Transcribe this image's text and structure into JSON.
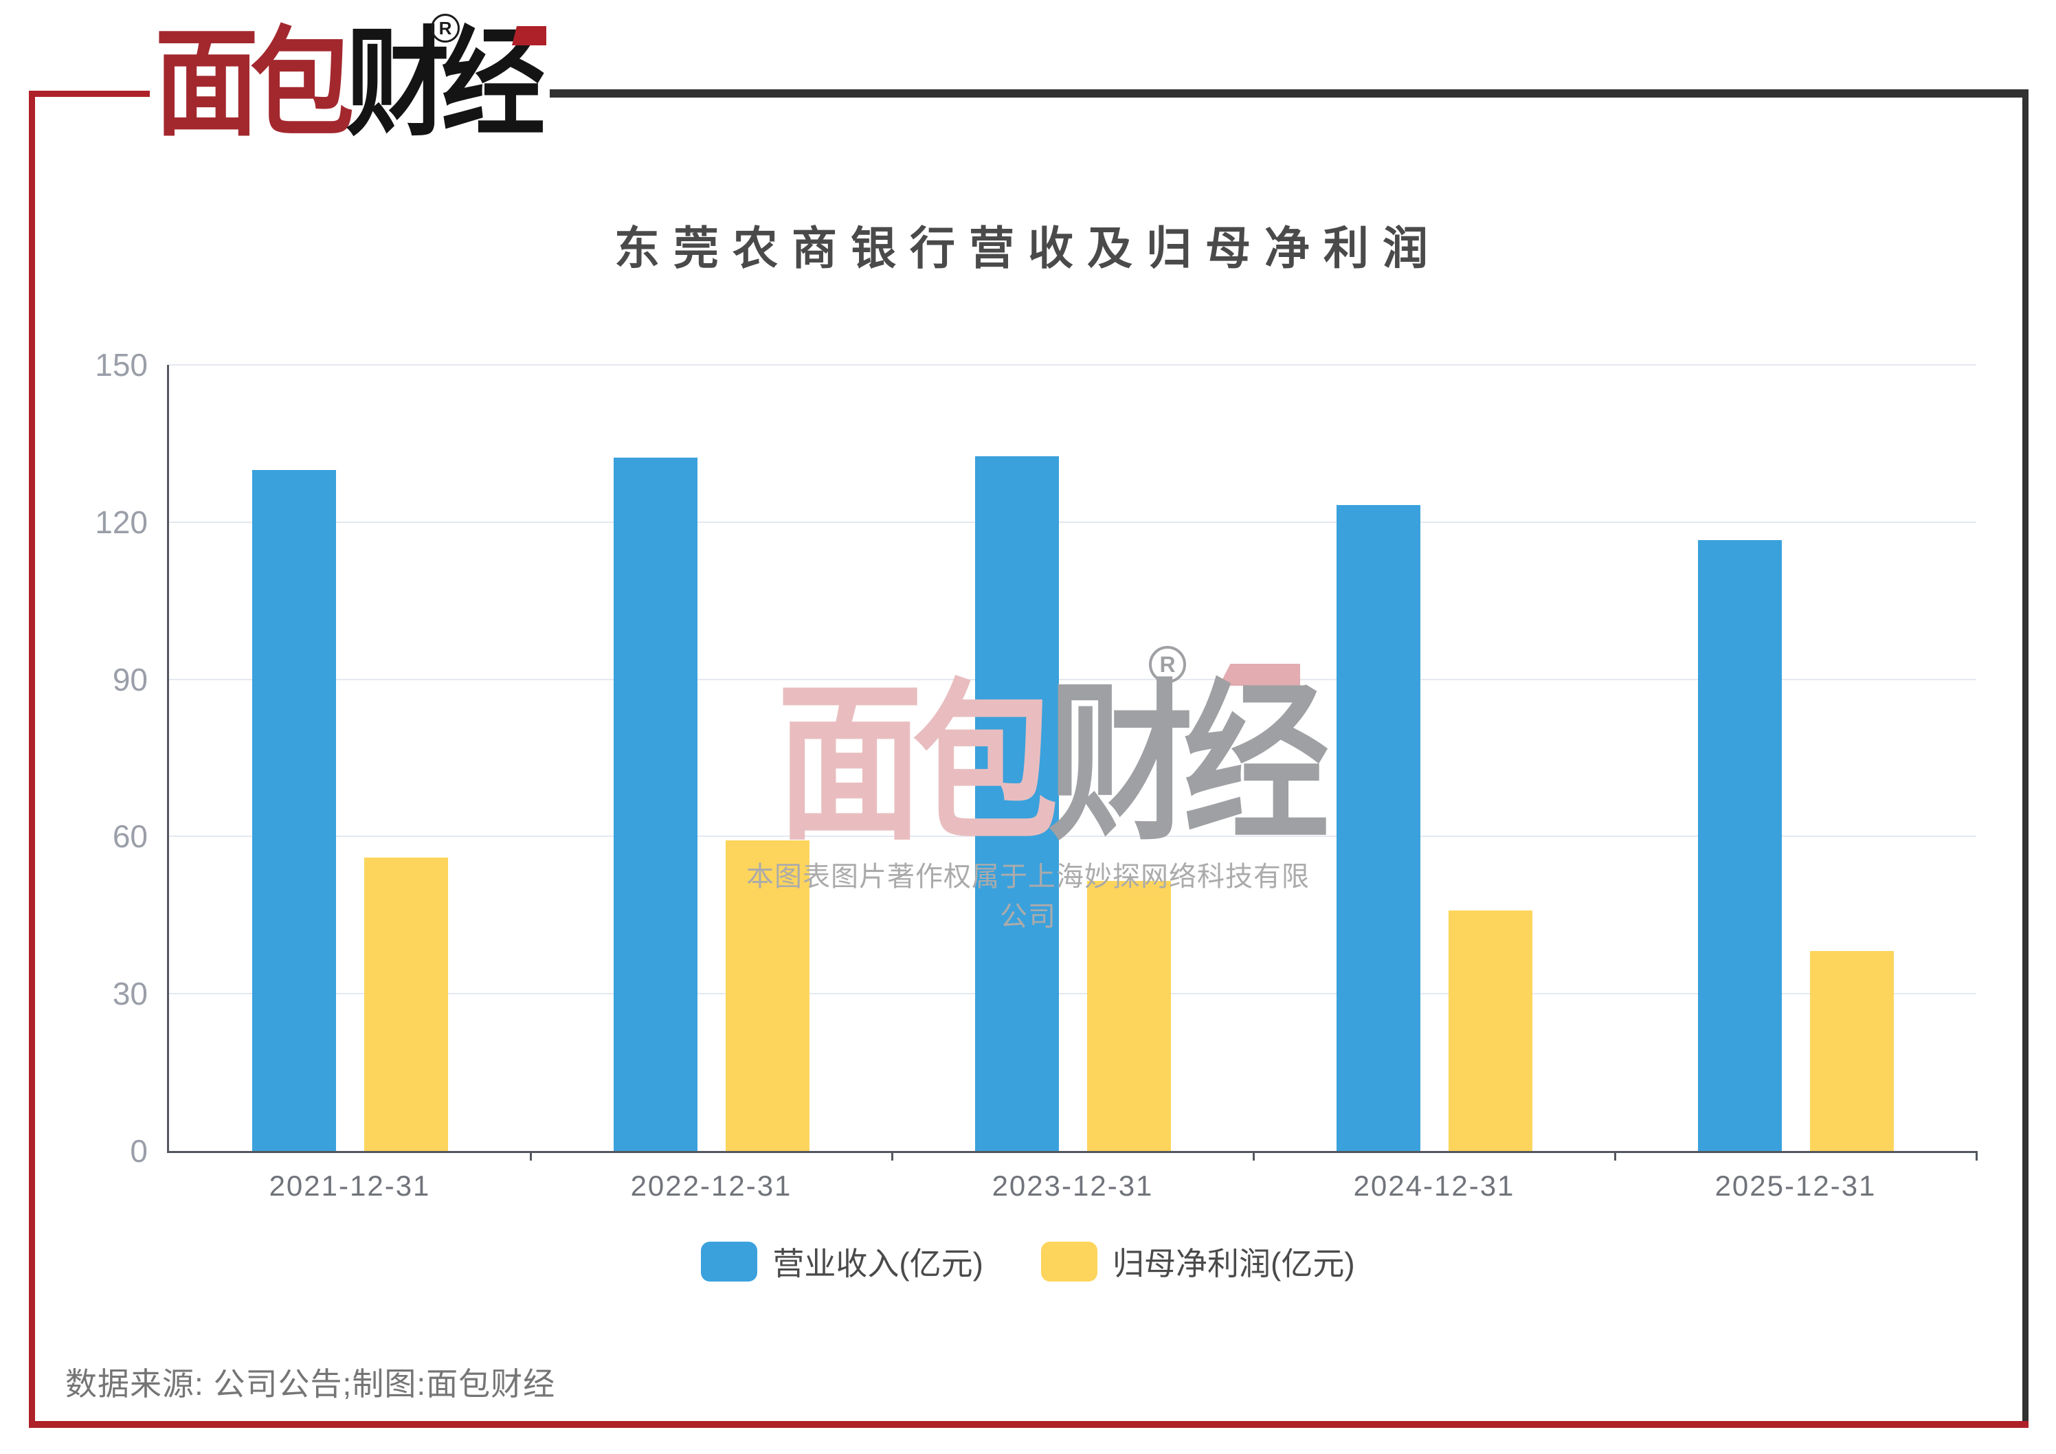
{
  "page": {
    "source_note": "数据来源: 公司公告;制图:面包财经"
  },
  "logo": {
    "brand_red": "面包",
    "brand_dark": "财经",
    "registered_mark": "R"
  },
  "watermark": {
    "brand_pink": "面包",
    "brand_gray": "财经",
    "registered_mark": "R",
    "copyright": "本图表图片著作权属于上海妙探网络科技有限公司"
  },
  "chart_data": {
    "type": "bar",
    "title": "东莞农商银行营收及归母净利润",
    "categories": [
      "2021-12-31",
      "2022-12-31",
      "2023-12-31",
      "2024-12-31",
      "2025-12-31"
    ],
    "series": [
      {
        "id": "revenue",
        "name": "营业收入(亿元)",
        "color": "#3AA1DC",
        "values": [
          129.9,
          132.3,
          132.6,
          123.2,
          116.6
        ]
      },
      {
        "id": "net-profit",
        "name": "归母净利润(亿元)",
        "color": "#FDD55C",
        "values": [
          56.0,
          59.3,
          51.5,
          45.9,
          38.2
        ]
      }
    ],
    "xlabel": "",
    "ylabel": "",
    "ylim": [
      0,
      150
    ],
    "yticks": [
      0,
      30,
      60,
      90,
      120,
      150
    ],
    "grid": true,
    "legend_position": "bottom"
  },
  "colors": {
    "accent_red": "#AE2128",
    "frame_dark": "#313131",
    "logo_red": "#A3282E",
    "logo_black": "#141414",
    "watermark_pink": "#E9BDBF",
    "watermark_gray": "#9FA0A3",
    "watermark_accent": "#E2ACB0",
    "watermark_text": "#ABABAB",
    "axis": "#54575E",
    "gridline": "#E4E8F1",
    "y_label": "#9A9EA8",
    "x_label": "#70737A",
    "legend_text": "#4A4A4A",
    "title_text": "#4A4A4A"
  }
}
